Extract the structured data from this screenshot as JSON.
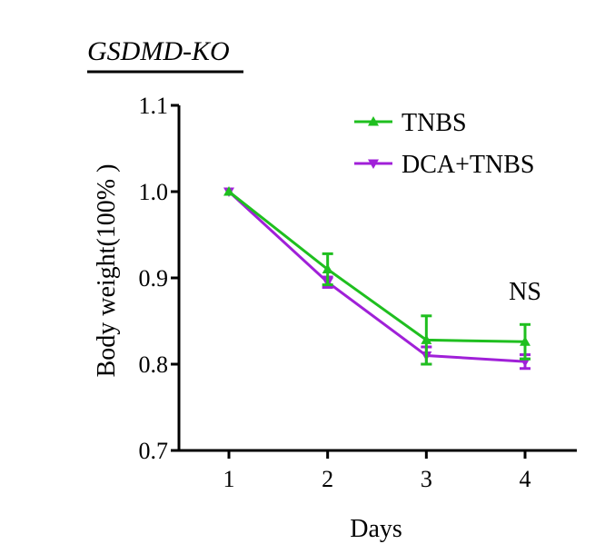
{
  "chart_data": {
    "type": "line",
    "title": "GSDMD-KO",
    "xlabel": "Days",
    "ylabel": "Body weight(100% )",
    "x": [
      1,
      2,
      3,
      4
    ],
    "xticks": [
      "1",
      "2",
      "3",
      "4"
    ],
    "xlim": [
      0.5,
      4.5
    ],
    "ylim": [
      0.7,
      1.1
    ],
    "yticks": [
      "0.7",
      "0.8",
      "0.9",
      "1.0",
      "1.1"
    ],
    "ytick_values": [
      0.7,
      0.8,
      0.9,
      1.0,
      1.1
    ],
    "grid": false,
    "legend_position": "top-right",
    "series": [
      {
        "name": "TNBS",
        "color": "#1fbf1f",
        "marker": "triangle-up",
        "values": [
          1.0,
          0.91,
          0.828,
          0.826
        ],
        "errors": [
          0.0,
          0.018,
          0.028,
          0.02
        ]
      },
      {
        "name": "DCA+TNBS",
        "color": "#a020d8",
        "marker": "triangle-down",
        "values": [
          1.0,
          0.895,
          0.81,
          0.803
        ],
        "errors": [
          0.0,
          0.006,
          0.01,
          0.008
        ]
      }
    ],
    "annotations": [
      {
        "text": "NS",
        "x": 4,
        "y": 0.88
      }
    ]
  }
}
